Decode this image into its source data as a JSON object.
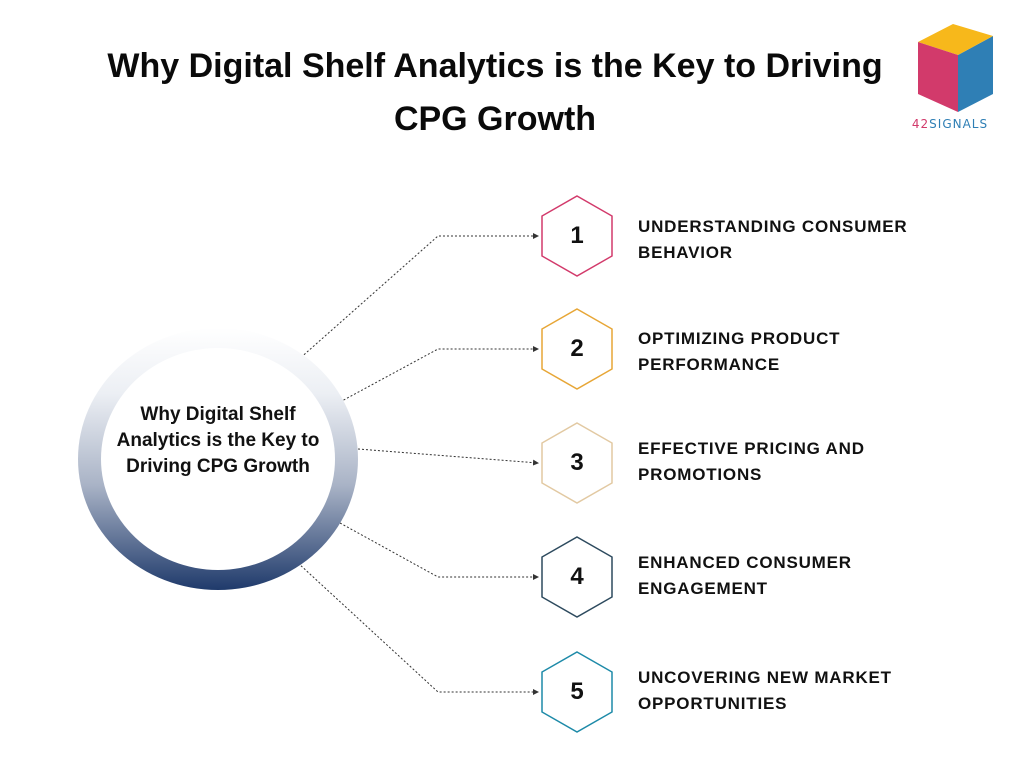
{
  "title": "Why Digital Shelf Analytics is the Key to Driving CPG Growth",
  "logo": {
    "text_number": "42",
    "text_word": "SIGNALS",
    "colors": {
      "top": "#f7b81b",
      "left": "#d23a6b",
      "right": "#2f7fb5"
    }
  },
  "center": {
    "text": "Why Digital Shelf Analytics is the Key to Driving CPG Growth",
    "gradient_colors": [
      "#ffffff",
      "#a9b3c6",
      "#1f3a6b"
    ]
  },
  "items": [
    {
      "number": "1",
      "label": "UNDERSTANDING CONSUMER BEHAVIOR",
      "color": "#d23a6b"
    },
    {
      "number": "2",
      "label": "OPTIMIZING PRODUCT PERFORMANCE",
      "color": "#e7a636"
    },
    {
      "number": "3",
      "label": "EFFECTIVE PRICING AND PROMOTIONS",
      "color": "#e2c9a2"
    },
    {
      "number": "4",
      "label": "ENHANCED CONSUMER ENGAGEMENT",
      "color": "#2d4a5e"
    },
    {
      "number": "5",
      "label": "UNCOVERING NEW MARKET OPPORTUNITIES",
      "color": "#1d8aa8"
    }
  ]
}
